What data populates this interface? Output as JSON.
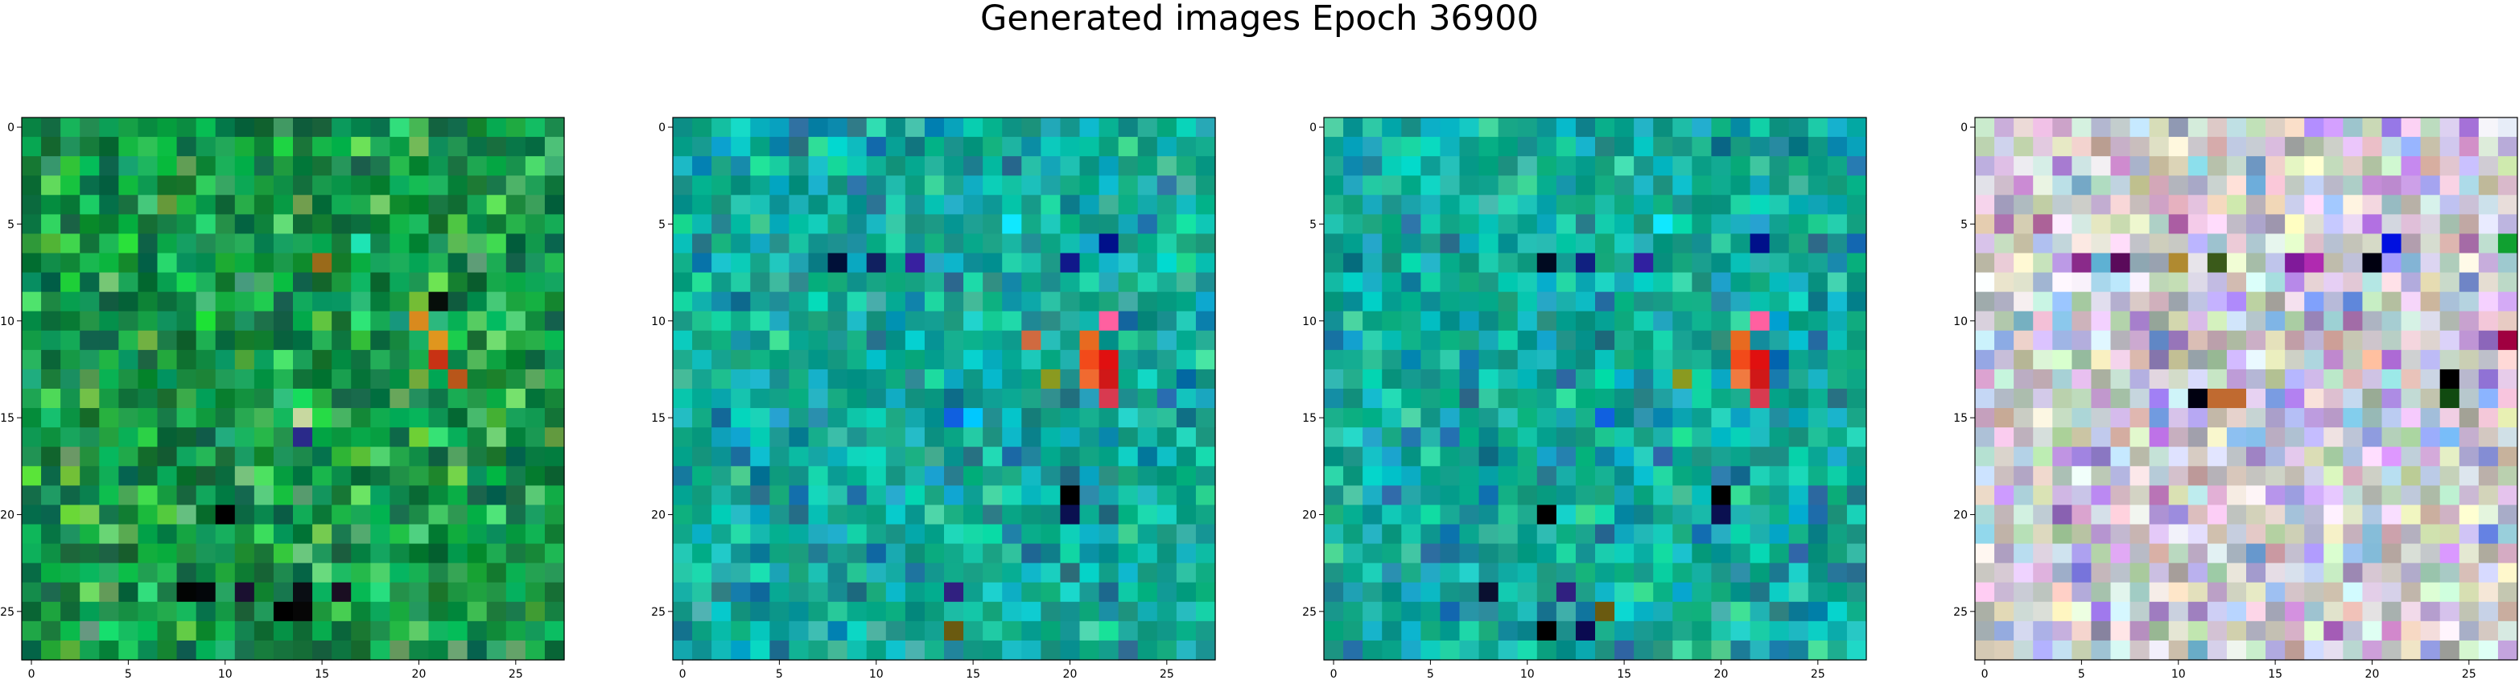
{
  "figure": {
    "title": "Generated images Epoch 36900"
  },
  "chart_data": [
    {
      "type": "heatmap",
      "size": 28,
      "xticks": [
        "0",
        "5",
        "10",
        "15",
        "20",
        "25"
      ],
      "yticks": [
        "0",
        "5",
        "10",
        "15",
        "20",
        "25"
      ],
      "palette": "green",
      "features": [
        {
          "row": 10,
          "col": 20,
          "color": "#d98a1e"
        },
        {
          "row": 11,
          "col": 21,
          "color": "#e0961e"
        },
        {
          "row": 12,
          "col": 21,
          "color": "#c83214"
        },
        {
          "row": 13,
          "col": 22,
          "color": "#b8561a"
        },
        {
          "row": 9,
          "col": 21,
          "color": "#060e0a"
        },
        {
          "row": 20,
          "col": 10,
          "color": "#000000"
        },
        {
          "row": 24,
          "col": 8,
          "color": "#020403"
        },
        {
          "row": 24,
          "col": 9,
          "color": "#03060a"
        },
        {
          "row": 24,
          "col": 11,
          "color": "#1a1030"
        },
        {
          "row": 24,
          "col": 14,
          "color": "#0a0e14"
        },
        {
          "row": 24,
          "col": 16,
          "color": "#1a0e22"
        },
        {
          "row": 25,
          "col": 13,
          "color": "#000000"
        },
        {
          "row": 25,
          "col": 14,
          "color": "#060606"
        },
        {
          "row": 16,
          "col": 14,
          "color": "#2a2a8a"
        },
        {
          "row": 15,
          "col": 14,
          "color": "#c8d8a0"
        },
        {
          "row": 7,
          "col": 15,
          "color": "#9a6a1a"
        },
        {
          "row": 6,
          "col": 17,
          "color": "#1ee4b4"
        }
      ]
    },
    {
      "type": "heatmap",
      "size": 28,
      "xticks": [
        "0",
        "5",
        "10",
        "15",
        "20",
        "25"
      ],
      "yticks": [
        "0",
        "5",
        "10",
        "15",
        "20",
        "25"
      ],
      "palette": "teal",
      "features": [
        {
          "row": 11,
          "col": 21,
          "color": "#e86a20"
        },
        {
          "row": 12,
          "col": 22,
          "color": "#e01010"
        },
        {
          "row": 13,
          "col": 22,
          "color": "#d01818"
        },
        {
          "row": 12,
          "col": 21,
          "color": "#f24a1a"
        },
        {
          "row": 13,
          "col": 21,
          "color": "#f06a30"
        },
        {
          "row": 14,
          "col": 22,
          "color": "#d83a50"
        },
        {
          "row": 10,
          "col": 22,
          "color": "#ff60a0"
        },
        {
          "row": 6,
          "col": 22,
          "color": "#00108a"
        },
        {
          "row": 7,
          "col": 20,
          "color": "#10188a"
        },
        {
          "row": 7,
          "col": 8,
          "color": "#001038"
        },
        {
          "row": 7,
          "col": 10,
          "color": "#102060"
        },
        {
          "row": 7,
          "col": 12,
          "color": "#3820a0"
        },
        {
          "row": 19,
          "col": 20,
          "color": "#000000"
        },
        {
          "row": 20,
          "col": 20,
          "color": "#0a1050"
        },
        {
          "row": 15,
          "col": 14,
          "color": "#1060e0"
        },
        {
          "row": 15,
          "col": 15,
          "color": "#00c8ff"
        },
        {
          "row": 24,
          "col": 14,
          "color": "#302080"
        },
        {
          "row": 26,
          "col": 14,
          "color": "#6a5a10"
        },
        {
          "row": 5,
          "col": 17,
          "color": "#10e8ff"
        },
        {
          "row": 13,
          "col": 19,
          "color": "#8a9a20"
        },
        {
          "row": 11,
          "col": 18,
          "color": "#d06a40"
        }
      ]
    },
    {
      "type": "heatmap",
      "size": 28,
      "xticks": [
        "0",
        "5",
        "10",
        "15",
        "20",
        "25"
      ],
      "yticks": [
        "0",
        "5",
        "10",
        "15",
        "20",
        "25"
      ],
      "palette": "teal",
      "features": [
        {
          "row": 11,
          "col": 21,
          "color": "#e86a20"
        },
        {
          "row": 12,
          "col": 22,
          "color": "#e01010"
        },
        {
          "row": 13,
          "col": 22,
          "color": "#d01818"
        },
        {
          "row": 12,
          "col": 21,
          "color": "#f24a1a"
        },
        {
          "row": 13,
          "col": 21,
          "color": "#f07a40"
        },
        {
          "row": 14,
          "col": 22,
          "color": "#d83a50"
        },
        {
          "row": 10,
          "col": 22,
          "color": "#ff60a0"
        },
        {
          "row": 6,
          "col": 22,
          "color": "#00108a"
        },
        {
          "row": 7,
          "col": 11,
          "color": "#000a20"
        },
        {
          "row": 7,
          "col": 13,
          "color": "#102080"
        },
        {
          "row": 7,
          "col": 16,
          "color": "#3020a0"
        },
        {
          "row": 19,
          "col": 20,
          "color": "#000000"
        },
        {
          "row": 20,
          "col": 20,
          "color": "#0a1050"
        },
        {
          "row": 15,
          "col": 14,
          "color": "#1060e0"
        },
        {
          "row": 20,
          "col": 11,
          "color": "#000000"
        },
        {
          "row": 24,
          "col": 8,
          "color": "#0a1030"
        },
        {
          "row": 24,
          "col": 12,
          "color": "#302080"
        },
        {
          "row": 26,
          "col": 11,
          "color": "#000000"
        },
        {
          "row": 26,
          "col": 13,
          "color": "#0a0a50"
        },
        {
          "row": 25,
          "col": 14,
          "color": "#6a5a10"
        },
        {
          "row": 5,
          "col": 17,
          "color": "#10e8ff"
        },
        {
          "row": 13,
          "col": 18,
          "color": "#8a9a20"
        }
      ]
    },
    {
      "type": "heatmap",
      "size": 28,
      "xticks": [
        "0",
        "5",
        "10",
        "15",
        "20",
        "25"
      ],
      "yticks": [
        "0",
        "5",
        "10",
        "15",
        "20",
        "25"
      ],
      "palette": "pastel",
      "features": [
        {
          "row": 6,
          "col": 21,
          "color": "#0010e0"
        },
        {
          "row": 7,
          "col": 20,
          "color": "#000010"
        },
        {
          "row": 7,
          "col": 5,
          "color": "#8a2a8a"
        },
        {
          "row": 7,
          "col": 7,
          "color": "#5a0a5a"
        },
        {
          "row": 7,
          "col": 10,
          "color": "#b08a30"
        },
        {
          "row": 7,
          "col": 12,
          "color": "#3a5a1a"
        },
        {
          "row": 7,
          "col": 16,
          "color": "#801a9a"
        },
        {
          "row": 7,
          "col": 17,
          "color": "#b02ab0"
        },
        {
          "row": 14,
          "col": 11,
          "color": "#000010"
        },
        {
          "row": 14,
          "col": 12,
          "color": "#c06a30"
        },
        {
          "row": 14,
          "col": 13,
          "color": "#c06a30"
        },
        {
          "row": 13,
          "col": 24,
          "color": "#000000"
        },
        {
          "row": 14,
          "col": 24,
          "color": "#104a10"
        },
        {
          "row": 11,
          "col": 27,
          "color": "#a00040"
        },
        {
          "row": 6,
          "col": 27,
          "color": "#10a030"
        },
        {
          "row": 12,
          "col": 20,
          "color": "#ffc0a0"
        }
      ]
    }
  ]
}
